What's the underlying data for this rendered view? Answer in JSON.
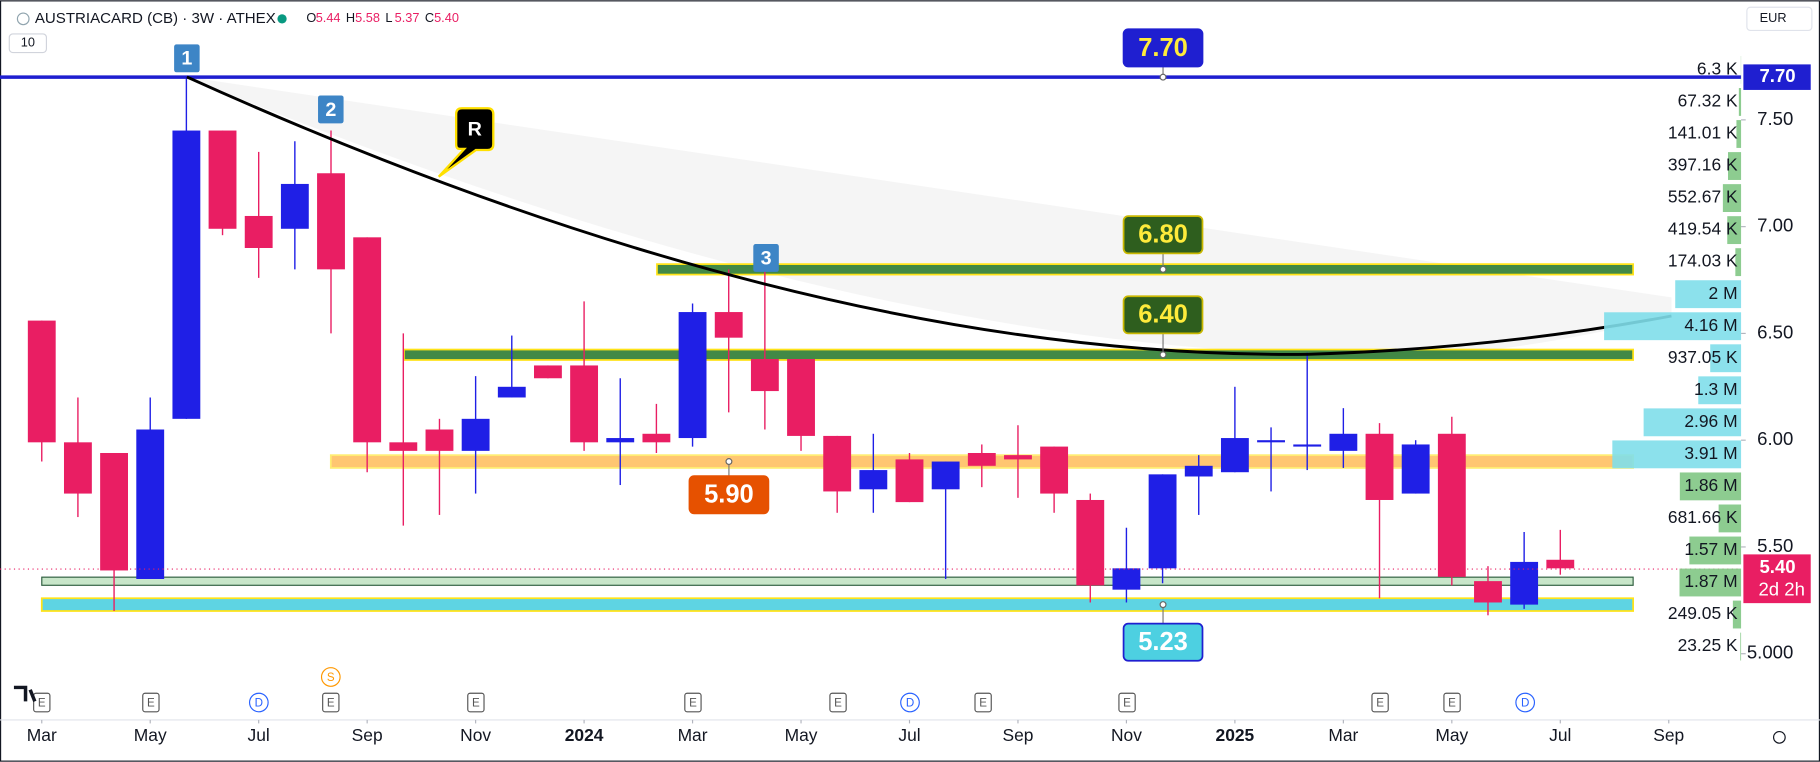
{
  "chart_data": {
    "type": "candlestick",
    "title": "AUSTRIACARD (CB) · 3W · ATHEX",
    "ohlc_header": [
      {
        "key": "O",
        "value": "5.44"
      },
      {
        "key": "H",
        "value": "5.58"
      },
      {
        "key": "L",
        "value": "5.37"
      },
      {
        "key": "C",
        "value": "5.40"
      }
    ],
    "interval_button": "10",
    "currency": "EUR",
    "up_color": "#1f1fe6",
    "down_color": "#e91e63",
    "open": [
      6.56,
      5.99,
      5.94,
      5.35,
      6.1,
      7.45,
      7.05,
      6.99,
      7.25,
      6.95,
      5.99,
      6.05,
      5.95,
      6.2,
      6.35,
      6.35,
      5.99,
      6.03,
      6.01,
      6.6,
      6.38,
      6.38,
      6.02,
      5.77,
      5.91,
      5.77,
      5.94,
      5.93,
      5.97,
      5.72,
      5.3,
      5.4,
      5.83,
      5.85,
      5.99,
      5.97,
      5.95,
      6.03,
      5.75,
      6.03,
      5.34,
      5.23,
      5.44
    ],
    "high": [
      6.56,
      6.2,
      5.94,
      6.2,
      7.7,
      7.45,
      7.35,
      7.4,
      7.45,
      6.95,
      6.5,
      6.1,
      6.3,
      6.49,
      6.35,
      6.65,
      6.29,
      6.17,
      6.64,
      6.8,
      6.8,
      6.38,
      6.02,
      6.03,
      5.94,
      5.9,
      5.98,
      6.07,
      5.97,
      5.75,
      5.59,
      5.84,
      5.93,
      6.25,
      6.06,
      6.41,
      6.15,
      6.08,
      6.0,
      6.11,
      5.41,
      5.57,
      5.58
    ],
    "low": [
      5.9,
      5.64,
      5.2,
      5.35,
      6.1,
      6.96,
      6.76,
      6.8,
      6.5,
      5.85,
      5.6,
      5.65,
      5.75,
      6.2,
      6.29,
      5.95,
      5.79,
      5.94,
      5.97,
      6.13,
      6.05,
      5.95,
      5.66,
      5.66,
      5.71,
      5.35,
      5.78,
      5.73,
      5.66,
      5.24,
      5.24,
      5.33,
      5.65,
      5.85,
      5.76,
      5.86,
      5.87,
      5.26,
      5.75,
      5.32,
      5.18,
      5.21,
      5.37
    ],
    "close": [
      5.99,
      5.75,
      5.39,
      6.05,
      7.45,
      6.99,
      6.9,
      7.2,
      6.8,
      5.99,
      5.95,
      5.95,
      6.1,
      6.25,
      6.29,
      5.99,
      6.01,
      5.99,
      6.6,
      6.48,
      6.23,
      6.02,
      5.76,
      5.86,
      5.71,
      5.9,
      5.88,
      5.91,
      5.75,
      5.32,
      5.4,
      5.84,
      5.88,
      6.01,
      6.0,
      5.98,
      6.03,
      5.72,
      5.98,
      5.36,
      5.24,
      5.43,
      5.4
    ],
    "xlim": [
      -1.155,
      47
    ],
    "xticks": [
      {
        "value": 0,
        "label": "Mar"
      },
      {
        "value": 3,
        "label": "May"
      },
      {
        "value": 6,
        "label": "Jul"
      },
      {
        "value": 9,
        "label": "Sep"
      },
      {
        "value": 12,
        "label": "Nov"
      },
      {
        "value": 15,
        "label": "2024"
      },
      {
        "value": 18,
        "label": "Mar"
      },
      {
        "value": 21,
        "label": "May"
      },
      {
        "value": 24,
        "label": "Jul"
      },
      {
        "value": 27,
        "label": "Sep"
      },
      {
        "value": 30,
        "label": "Nov"
      },
      {
        "value": 33,
        "label": "2025"
      },
      {
        "value": 36,
        "label": "Mar"
      },
      {
        "value": 39,
        "label": "May"
      },
      {
        "value": 42,
        "label": "Jul"
      },
      {
        "value": 45,
        "label": "Sep"
      }
    ],
    "ylim": [
      4.69,
      8.06
    ],
    "yticks": [
      {
        "value": 7.5,
        "label": "7.50"
      },
      {
        "value": 7,
        "label": "7.00"
      },
      {
        "value": 6.5,
        "label": "6.50"
      },
      {
        "value": 6,
        "label": "6.00"
      },
      {
        "value": 5.5,
        "label": "5.50"
      },
      {
        "value": 5,
        "label": "5.000"
      }
    ],
    "levels": [
      {
        "value": 7.7,
        "label": "7.70",
        "color": "#1f1fd0"
      },
      {
        "value": 6.8,
        "label": "6.80",
        "color": "#2e7d32"
      },
      {
        "value": 6.4,
        "label": "6.40",
        "color": "#2e7d32"
      },
      {
        "value": 5.9,
        "label": "5.90",
        "color": "#ff9800"
      },
      {
        "value": 5.23,
        "label": "5.23",
        "color": "#4dd0e1"
      }
    ],
    "last_price_label": "5.40",
    "countdown": "2d 2h",
    "markers": [
      "1",
      "2",
      "3",
      "R"
    ],
    "events": [
      "E",
      "E",
      "D",
      "S",
      "E",
      "E",
      "E",
      "E",
      "D",
      "E",
      "E",
      "E",
      "E",
      "D"
    ],
    "volume_profile": {
      "values": [
        6300,
        67320,
        141010,
        397160,
        552670,
        419540,
        174030,
        2000000,
        4160000,
        937050,
        1300000,
        2960000,
        3910000,
        1860000,
        681660,
        1570000,
        1870000,
        249050,
        23250
      ],
      "value_labels": [
        "6.3 K",
        "67.32 K",
        "141.01 K",
        "397.16 K",
        "552.67 K",
        "419.54 K",
        "174.03 K",
        "2 M",
        "4.16 M",
        "937.05 K",
        "1.3 M",
        "2.96 M",
        "3.91 M",
        "1.86 M",
        "681.66 K",
        "1.57 M",
        "1.87 M",
        "249.05 K",
        "23.25 K"
      ],
      "colors": [
        "#81c784",
        "#81c784",
        "#81c784",
        "#81c784",
        "#81c784",
        "#81c784",
        "#81c784",
        "#80deea",
        "#80deea",
        "#80deea",
        "#80deea",
        "#80deea",
        "#80deea",
        "#81c784",
        "#81c784",
        "#81c784",
        "#81c784",
        "#81c784",
        "#81c784"
      ]
    }
  }
}
